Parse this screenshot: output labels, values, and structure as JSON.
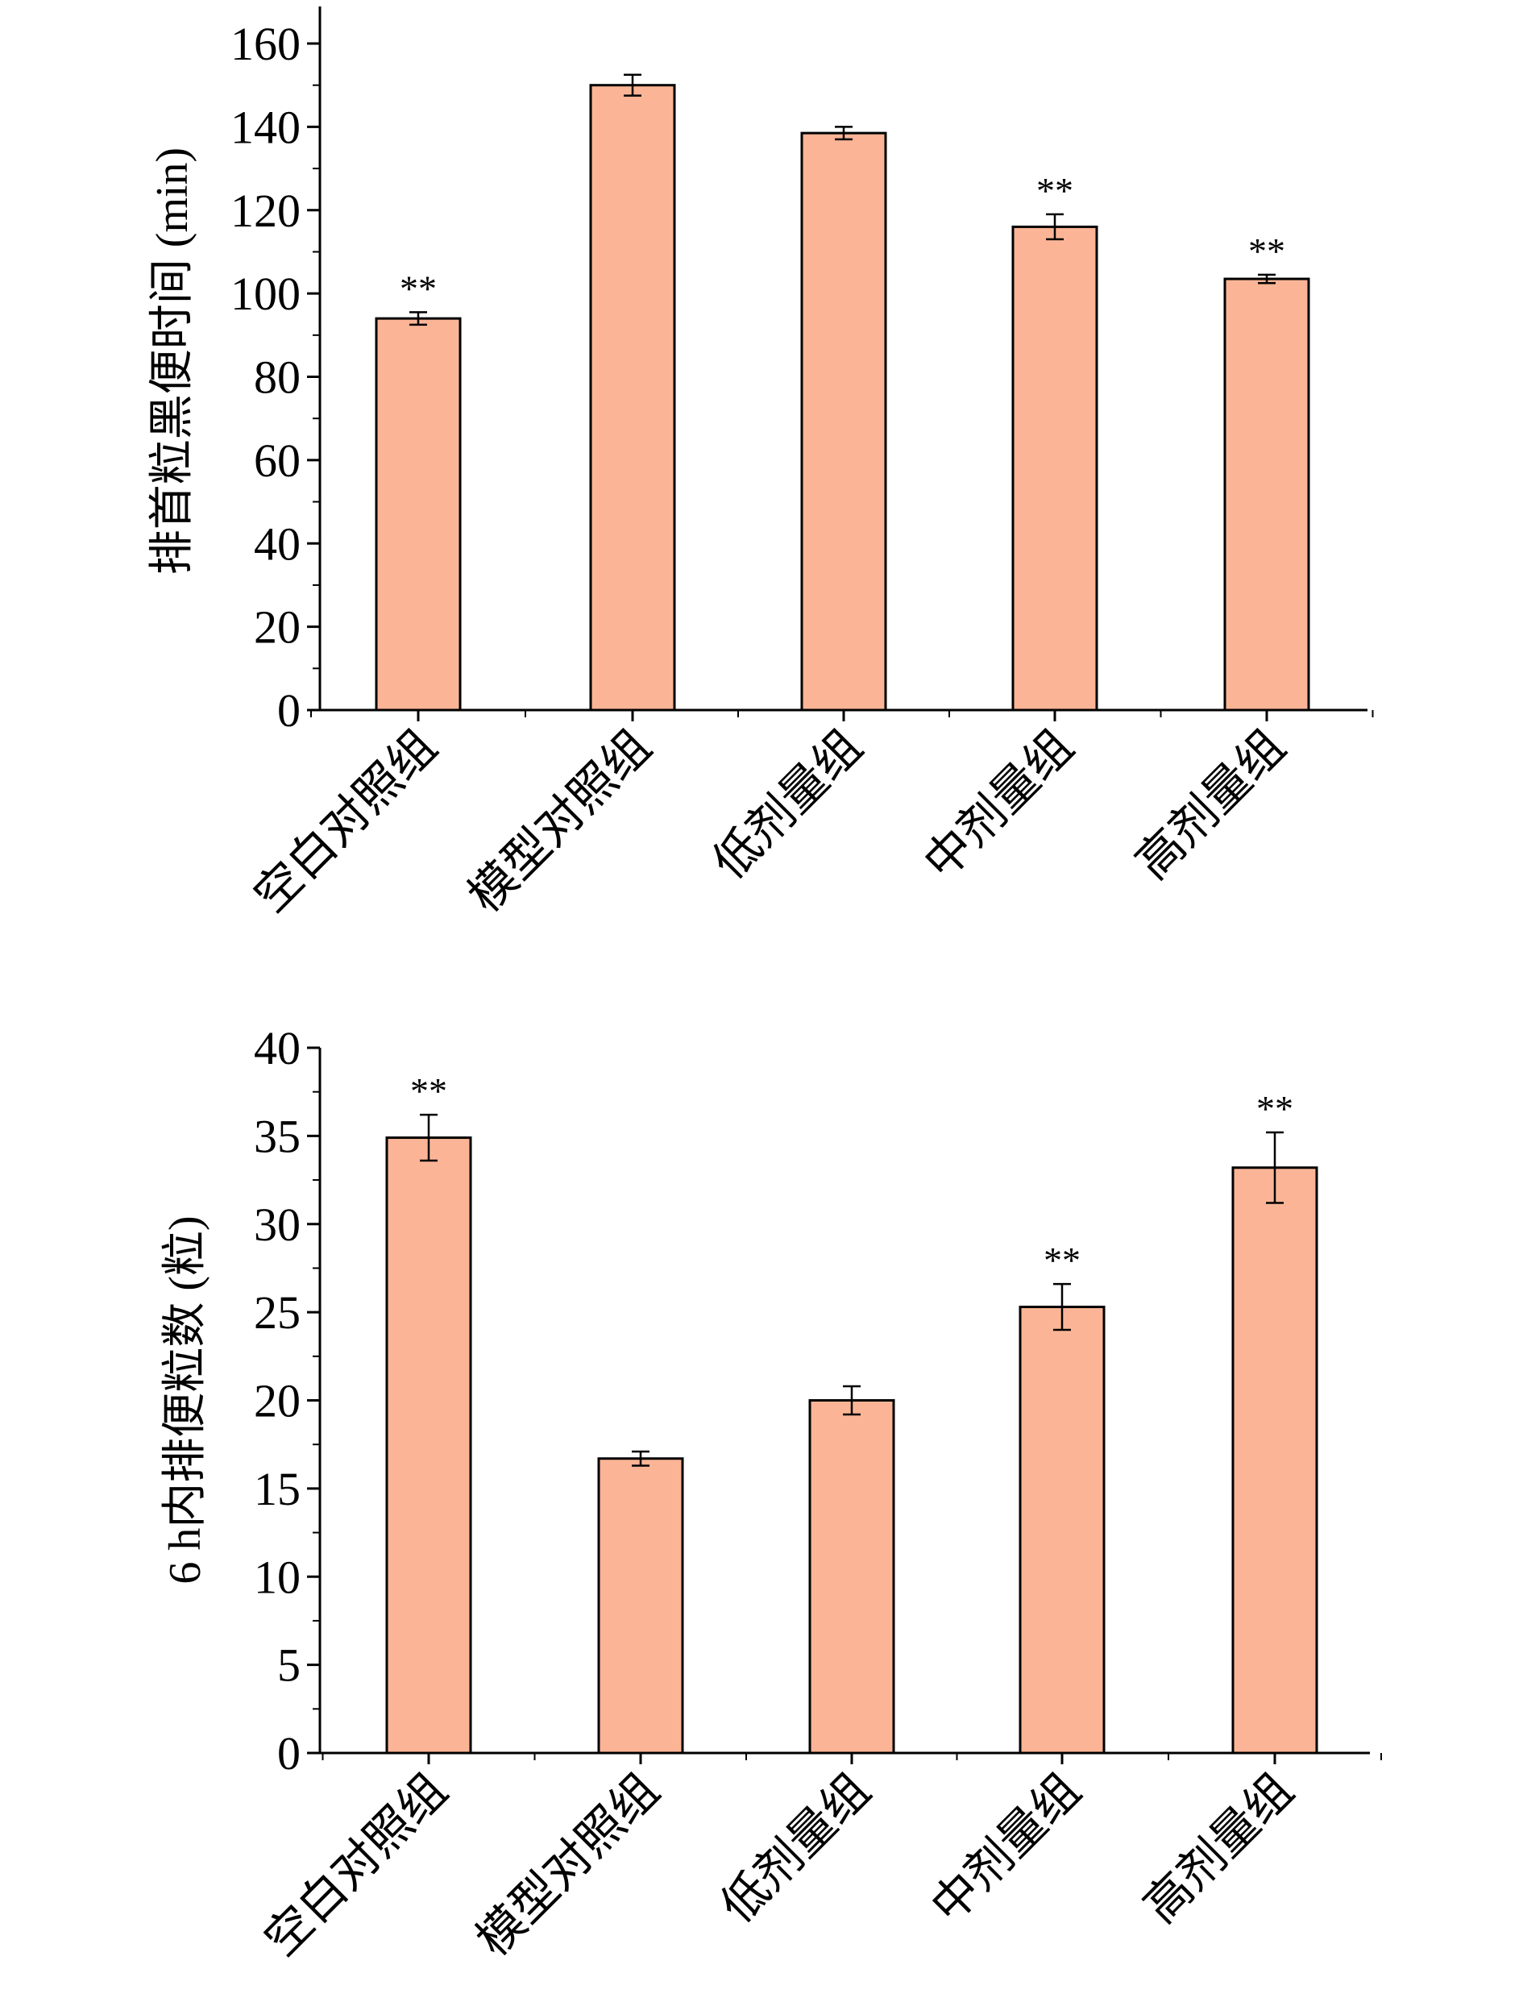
{
  "colors": {
    "bar_fill": "#FBB596",
    "bar_stroke": "#000000",
    "axis": "#000000"
  },
  "chart_data": [
    {
      "type": "bar",
      "title": "",
      "xlabel": "",
      "ylabel": "排首粒黑便时间 (min)",
      "ylim": [
        0,
        170
      ],
      "yticks": [
        0,
        20,
        40,
        60,
        80,
        100,
        120,
        140,
        160
      ],
      "grid": false,
      "categories": [
        "空白对照组",
        "模型对照组",
        "低剂量组",
        "中剂量组",
        "高剂量组"
      ],
      "values": [
        94,
        150,
        138.5,
        116,
        103.5
      ],
      "errors": [
        1.5,
        2.5,
        1.5,
        3,
        1
      ],
      "annotations": [
        "**",
        "",
        "",
        "**",
        "**"
      ]
    },
    {
      "type": "bar",
      "title": "",
      "xlabel": "",
      "ylabel": "6 h内排便粒数 (粒)",
      "ylim": [
        0,
        40
      ],
      "yticks": [
        0,
        5,
        10,
        15,
        20,
        25,
        30,
        35,
        40
      ],
      "grid": false,
      "categories": [
        "空白对照组",
        "模型对照组",
        "低剂量组",
        "中剂量组",
        "高剂量组"
      ],
      "values": [
        34.9,
        16.7,
        20,
        25.3,
        33.2
      ],
      "errors": [
        1.3,
        0.4,
        0.8,
        1.3,
        2
      ],
      "annotations": [
        "**",
        "",
        "",
        "**",
        "**"
      ]
    }
  ]
}
